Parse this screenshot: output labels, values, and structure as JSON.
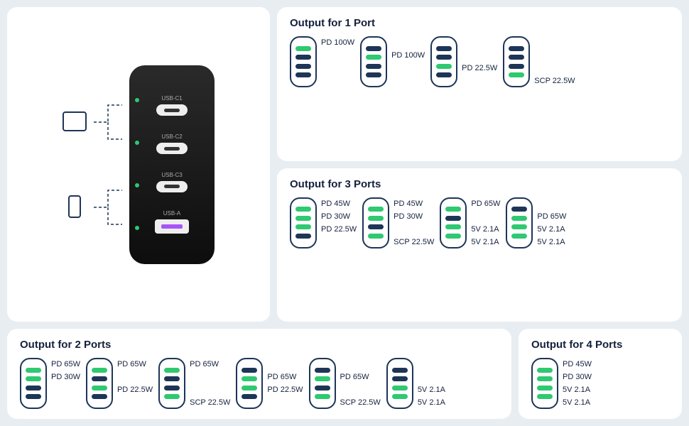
{
  "colors": {
    "active": "#2ec971",
    "inactive": "#1d3557",
    "panel_bg": "#ffffff",
    "page_bg": "#e8edf2",
    "text": "#14213d"
  },
  "charger": {
    "ports": [
      "USB-C1",
      "USB-C2",
      "USB-C3",
      "USB-A"
    ]
  },
  "sections": {
    "one": {
      "title": "Output for 1 Port",
      "combos": [
        {
          "bars": [
            1,
            0,
            0,
            0
          ],
          "labels": [
            "PD 100W",
            "",
            "",
            ""
          ]
        },
        {
          "bars": [
            0,
            1,
            0,
            0
          ],
          "labels": [
            "",
            "PD 100W",
            "",
            ""
          ]
        },
        {
          "bars": [
            0,
            0,
            1,
            0
          ],
          "labels": [
            "",
            "",
            "PD 22.5W",
            ""
          ]
        },
        {
          "bars": [
            0,
            0,
            0,
            1
          ],
          "labels": [
            "",
            "",
            "",
            "SCP 22.5W"
          ]
        }
      ]
    },
    "three": {
      "title": "Output for 3 Ports",
      "combos": [
        {
          "bars": [
            1,
            1,
            1,
            0
          ],
          "labels": [
            "PD 45W",
            "PD 30W",
            "PD 22.5W",
            ""
          ]
        },
        {
          "bars": [
            1,
            1,
            0,
            1
          ],
          "labels": [
            "PD 45W",
            "PD 30W",
            "",
            "SCP 22.5W"
          ]
        },
        {
          "bars": [
            1,
            0,
            1,
            1
          ],
          "labels": [
            "PD 65W",
            "",
            "5V 2.1A",
            "5V 2.1A"
          ]
        },
        {
          "bars": [
            0,
            1,
            1,
            1
          ],
          "labels": [
            "",
            "PD 65W",
            "5V 2.1A",
            "5V 2.1A"
          ]
        }
      ]
    },
    "two": {
      "title": "Output for 2 Ports",
      "combos": [
        {
          "bars": [
            1,
            1,
            0,
            0
          ],
          "labels": [
            "PD 65W",
            "PD 30W",
            "",
            ""
          ]
        },
        {
          "bars": [
            1,
            0,
            1,
            0
          ],
          "labels": [
            "PD 65W",
            "",
            "PD 22.5W",
            ""
          ]
        },
        {
          "bars": [
            1,
            0,
            0,
            1
          ],
          "labels": [
            "PD 65W",
            "",
            "",
            "SCP 22.5W"
          ]
        },
        {
          "bars": [
            0,
            1,
            1,
            0
          ],
          "labels": [
            "",
            "PD 65W",
            "PD 22.5W",
            ""
          ]
        },
        {
          "bars": [
            0,
            1,
            0,
            1
          ],
          "labels": [
            "",
            "PD 65W",
            "",
            "SCP 22.5W"
          ]
        },
        {
          "bars": [
            0,
            0,
            1,
            1
          ],
          "labels": [
            "",
            "",
            "5V 2.1A",
            "5V 2.1A"
          ]
        }
      ]
    },
    "four": {
      "title": "Output for 4 Ports",
      "combos": [
        {
          "bars": [
            1,
            1,
            1,
            1
          ],
          "labels": [
            "PD 45W",
            "PD 30W",
            "5V 2.1A",
            "5V 2.1A"
          ]
        }
      ]
    }
  }
}
